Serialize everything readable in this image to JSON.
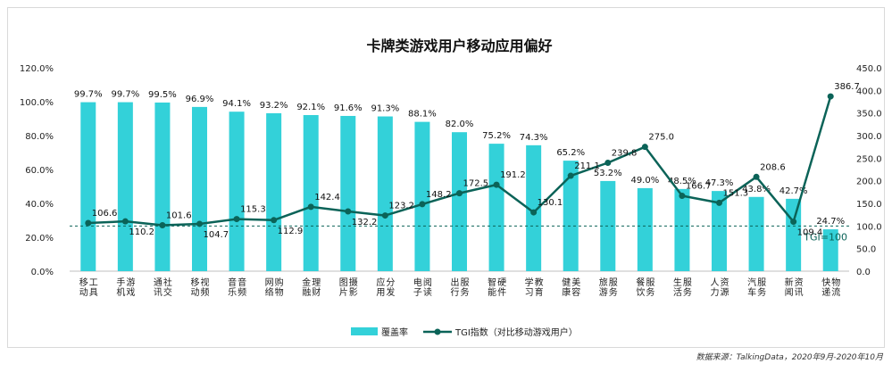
{
  "source": "数据来源：TalkingData，2020年9月-2020年10月",
  "chart_data": {
    "type": "bar",
    "title": "卡牌类游戏用户移动应用偏好",
    "categories": [
      "移动工具",
      "手机游戏",
      "通讯社交",
      "移动视频",
      "音乐音频",
      "网络购物",
      "金融理财",
      "图片摄影",
      "应用分发",
      "电子阅读",
      "出行服务",
      "智能硬件",
      "学习教育",
      "健康美容",
      "旅游服务",
      "餐饮服务",
      "生活服务",
      "人力资源",
      "汽车服务",
      "新闻资讯",
      "快递物流"
    ],
    "y_left": {
      "ticks": [
        "0.0%",
        "20.0%",
        "40.0%",
        "60.0%",
        "80.0%",
        "100.0%",
        "120.0%"
      ],
      "min": 0,
      "max": 120
    },
    "y_right": {
      "ticks": [
        "0.0",
        "50.0",
        "100.0",
        "150.0",
        "200.0",
        "250.0",
        "300.0",
        "350.0",
        "400.0",
        "450.0"
      ],
      "min": 0,
      "max": 450
    },
    "series": [
      {
        "name": "覆盖率",
        "kind": "bar",
        "color": "#33d1d9",
        "values": [
          99.7,
          99.7,
          99.5,
          96.9,
          94.1,
          93.2,
          92.1,
          91.6,
          91.3,
          88.1,
          82.0,
          75.2,
          74.3,
          65.2,
          53.2,
          49.0,
          48.5,
          47.3,
          43.8,
          42.7,
          24.7
        ],
        "labels": [
          "99.7%",
          "99.7%",
          "99.5%",
          "96.9%",
          "94.1%",
          "93.2%",
          "92.1%",
          "91.6%",
          "91.3%",
          "88.1%",
          "82.0%",
          "75.2%",
          "74.3%",
          "65.2%",
          "53.2%",
          "49.0%",
          "48.5%",
          "47.3%",
          "43.8%",
          "42.7%",
          "24.7%"
        ]
      },
      {
        "name": "TGI指数（对比移动游戏用户）",
        "kind": "line",
        "color": "#0b6358",
        "values": [
          106.6,
          110.2,
          101.6,
          104.7,
          115.3,
          112.9,
          142.4,
          132.2,
          123.2,
          148.2,
          172.5,
          191.2,
          130.1,
          211.1,
          239.8,
          275.0,
          166.7,
          151.3,
          208.6,
          109.4,
          386.7
        ],
        "labels": [
          "106.6",
          "110.2",
          "101.6",
          "104.7",
          "115.3",
          "112.9",
          "142.4",
          "132.2",
          "123.2",
          "148.2",
          "172.5",
          "191.2",
          "130.1",
          "211.1",
          "239.8",
          "275.0",
          "166.7",
          "151.3",
          "208.6",
          "109.4",
          "386.7"
        ]
      }
    ],
    "reference_line": {
      "label": "TGI=100",
      "value": 100,
      "axis": "right",
      "style": "dashed"
    },
    "legend_position": "bottom-center",
    "grid": false
  }
}
